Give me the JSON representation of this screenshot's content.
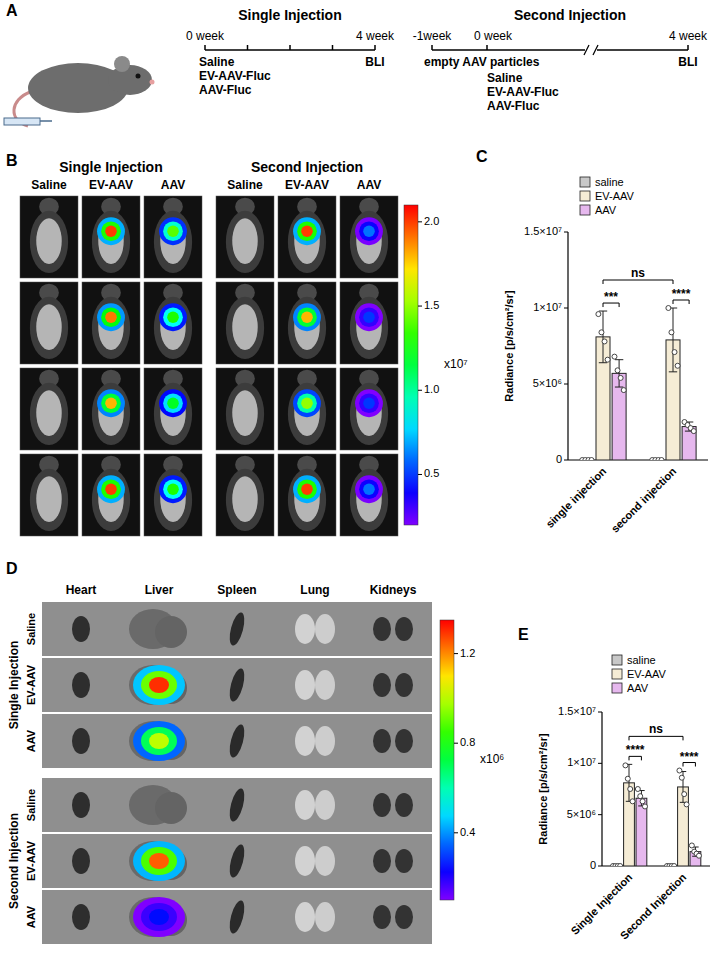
{
  "panel_labels": [
    "A",
    "B",
    "C",
    "D",
    "E"
  ],
  "panel_a": {
    "single": {
      "title": "Single Injection",
      "start": "0 week",
      "end": "4 week",
      "treatments": [
        "Saline",
        "EV-AAV-Fluc",
        "AAV-Fluc"
      ],
      "readout": "BLI"
    },
    "second": {
      "title": "Second Injection",
      "pre": "-1week",
      "pre_treatment": "empty AAV particles",
      "start": "0 week",
      "end": "4 week",
      "treatments": [
        "Saline",
        "EV-AAV-Fluc",
        "AAV-Fluc"
      ],
      "readout": "BLI"
    }
  },
  "panel_b": {
    "groups": [
      {
        "title": "Single Injection",
        "columns": [
          "Saline",
          "EV-AAV",
          "AAV"
        ]
      },
      {
        "title": "Second Injection",
        "columns": [
          "Saline",
          "EV-AAV",
          "AAV"
        ]
      }
    ],
    "signal": [
      [
        null,
        2.0,
        1.4,
        null,
        2.0,
        0.6
      ],
      [
        null,
        1.9,
        1.3,
        null,
        1.8,
        0.5
      ],
      [
        null,
        1.8,
        1.2,
        null,
        1.5,
        0.5
      ],
      [
        null,
        2.0,
        1.3,
        null,
        2.0,
        0.6
      ]
    ],
    "colorbar": {
      "range": [
        0.2,
        2.1
      ],
      "ticks": [
        0.5,
        {
          "value": 1,
          "label": "1.0"
        },
        1.5,
        {
          "value": 2,
          "label": "2.0"
        }
      ],
      "multiplier": "x10⁷"
    }
  },
  "panel_d": {
    "organs": [
      "Heart",
      "Liver",
      "Spleen",
      "Lung",
      "Kidneys"
    ],
    "groups": [
      {
        "title": "Single Injection",
        "rows": [
          "Saline",
          "EV-AAV",
          "AAV"
        ]
      },
      {
        "title": "Second Injection",
        "rows": [
          "Saline",
          "EV-AAV",
          "AAV"
        ]
      }
    ],
    "liver_signal": [
      null,
      1.3,
      1.0,
      null,
      1.25,
      0.25
    ],
    "colorbar": {
      "range": [
        0.1,
        1.35
      ],
      "ticks": [
        0.4,
        0.8,
        1.2
      ],
      "multiplier": "x10⁶"
    }
  },
  "chart_data": [
    {
      "type": "bar",
      "categories": [
        "single injection",
        "second injection"
      ],
      "ylabel": "Radiance [p/s/cm²/sr]",
      "ylim": [
        0,
        15000000
      ],
      "yticks": [
        0,
        {
          "value": 5000000,
          "label": "5×10⁶"
        },
        {
          "value": 10000000,
          "label": "1×10⁷"
        },
        {
          "value": 15000000,
          "label": "1.5×10⁷"
        }
      ],
      "legend": "top",
      "series": [
        {
          "name": "saline",
          "color": "#c8c8c8",
          "values": [
            0,
            0
          ],
          "errors": [
            0,
            0
          ],
          "points": [
            [
              0,
              0,
              0,
              0
            ],
            [
              0,
              0,
              0,
              0
            ]
          ]
        },
        {
          "name": "EV-AAV",
          "color": "#f5ecd5",
          "values": [
            8100000,
            7900000
          ],
          "errors": [
            1700000,
            2100000
          ],
          "points": [
            [
              9600000,
              8400000,
              7800000,
              6600000
            ],
            [
              10000000,
              8400000,
              7100000,
              6200000
            ]
          ]
        },
        {
          "name": "AAV",
          "color": "#e6b8ee",
          "values": [
            5700000,
            2200000
          ],
          "errors": [
            900000,
            300000
          ],
          "points": [
            [
              6800000,
              5900000,
              5400000,
              4600000
            ],
            [
              2500000,
              2300000,
              2100000,
              1900000
            ]
          ]
        }
      ],
      "annotations": [
        {
          "text": "***",
          "categories": [
            "single injection"
          ],
          "series": [
            "EV-AAV",
            "AAV"
          ]
        },
        {
          "text": "****",
          "categories": [
            "second injection"
          ],
          "series": [
            "EV-AAV",
            "AAV"
          ]
        },
        {
          "text": "ns",
          "categories": [
            "single injection",
            "second injection"
          ],
          "series": [
            "EV-AAV"
          ]
        }
      ]
    },
    {
      "type": "bar",
      "categories": [
        "Single Injection",
        "Second Injection"
      ],
      "ylabel": "Radiance [p/s/cm²/sr]",
      "ylim": [
        0,
        15000000
      ],
      "yticks": [
        0,
        {
          "value": 5000000,
          "label": "5×10⁶"
        },
        {
          "value": 10000000,
          "label": "1×10⁷"
        },
        {
          "value": 15000000,
          "label": "1.5×10⁷"
        }
      ],
      "legend": "top",
      "series": [
        {
          "name": "saline",
          "color": "#c8c8c8",
          "values": [
            0,
            0
          ],
          "errors": [
            0,
            0
          ],
          "points": [
            [
              0,
              0,
              0,
              0
            ],
            [
              0,
              0,
              0,
              0
            ]
          ]
        },
        {
          "name": "EV-AAV",
          "color": "#f5ecd5",
          "values": [
            8100000,
            7700000
          ],
          "errors": [
            1800000,
            1500000
          ],
          "points": [
            [
              9800000,
              8500000,
              7500000,
              6300000
            ],
            [
              9300000,
              8600000,
              7000000,
              6000000
            ]
          ]
        },
        {
          "name": "AAV",
          "color": "#e6b8ee",
          "values": [
            6600000,
            1400000
          ],
          "errors": [
            750000,
            450000
          ],
          "points": [
            [
              7500000,
              6800000,
              6300000,
              5800000
            ],
            [
              2000000,
              1400000,
              1200000,
              1000000
            ]
          ]
        }
      ],
      "annotations": [
        {
          "text": "****",
          "categories": [
            "Single Injection"
          ],
          "series": [
            "EV-AAV",
            "AAV"
          ]
        },
        {
          "text": "****",
          "categories": [
            "Second Injection"
          ],
          "series": [
            "EV-AAV",
            "AAV"
          ]
        },
        {
          "text": "ns",
          "categories": [
            "Single Injection",
            "Second Injection"
          ],
          "series": [
            "EV-AAV"
          ]
        }
      ]
    }
  ]
}
